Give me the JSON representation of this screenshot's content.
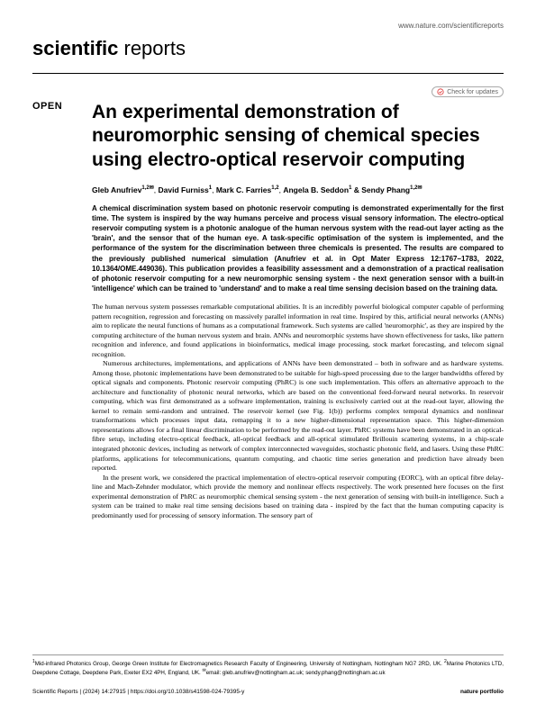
{
  "topbar_url": "www.nature.com/scientificreports",
  "journal": {
    "bold": "scientific",
    "light": " reports"
  },
  "updates_label": "Check for updates",
  "open_label": "OPEN",
  "title": "An experimental demonstration of neuromorphic sensing of chemical species using electro-optical reservoir computing",
  "authors_html": "Gleb Anufriev<sup>1,2✉</sup>, David Furniss<sup>1</sup>, Mark C. Farries<sup>1,2</sup>, Angela B. Seddon<sup>1</sup> & Sendy Phang<sup>1,2✉</sup>",
  "abstract": "A chemical discrimination system based on photonic reservoir computing is demonstrated experimentally for the first time. The system is inspired by the way humans perceive and process visual sensory information. The electro-optical reservoir computing system is a photonic analogue of the human nervous system with the read-out layer acting as the 'brain', and the sensor that of the human eye. A task-specific optimisation of the system is implemented, and the performance of the system for the discrimination between three chemicals is presented. The results are compared to the previously published numerical simulation (Anufriev et al. in Opt Mater Express 12:1767–1783, 2022, 10.1364/OME.449036). This publication provides a feasibility assessment and a demonstration of a practical realisation of photonic reservoir computing for a new neuromorphic sensing system - the next generation sensor with a built-in 'intelligence' which can be trained to 'understand' and to make a real time sensing decision based on the training data.",
  "para1": "The human nervous system possesses remarkable computational abilities. It is an incredibly powerful biological computer capable of performing pattern recognition, regression and forecasting on massively parallel information in real time. Inspired by this, artificial neural networks (ANNs) aim to replicate the neural functions of humans as a computational framework. Such systems are called 'neuromorphic', as they are inspired by the computing architecture of the human nervous system and brain. ANNs and neuromorphic systems have shown effectiveness for tasks, like pattern recognition and inference, and found applications in bioinformatics, medical image processing, stock market forecasting, and telecom signal recognition.",
  "para2": "Numerous architectures, implementations, and applications of ANNs have been demonstrated – both in software and as hardware systems. Among those, photonic implementations have been demonstrated to be suitable for high-speed processing due to the larger bandwidths offered by optical signals and components. Photonic reservoir computing (PhRC) is one such implementation. This offers an alternative approach to the architecture and functionality of photonic neural networks, which are based on the conventional feed-forward neural networks. In reservoir computing, which was first demonstrated as a software implementation, training is exclusively carried out at the read-out layer, allowing the kernel to remain semi-random and untrained. The reservoir kernel (see Fig. 1(b)) performs complex temporal dynamics and nonlinear transformations which processes input data, remapping it to a new higher-dimensional representation space. This higher-dimension representations allows for a final linear discrimination to be performed by the read-out layer. PhRC systems have been demonstrated in an optical-fibre setup, including electro-optical feedback, all-optical feedback and all-optical stimulated Brillouin scattering systems, in a chip-scale integrated photonic devices, including as network of complex interconnected waveguides, stochastic photonic field, and lasers. Using these PhRC platforms, applications for telecommunications, quantum computing, and chaotic time series generation and prediction have already been reported.",
  "para3": "In the present work, we considered the practical implementation of electro-optical reservoir computing (EORC), with an optical fibre delay-line and Mach-Zehnder modulator, which provide the memory and nonlinear effects respectively. The work presented here focuses on the first experimental demonstration of PhRC as neuromorphic chemical sensing system - the next generation of sensing with built-in intelligence. Such a system can be trained to make real time sensing decisions based on training data - inspired by the fact that the human computing capacity is predominantly used for processing of sensory information. The sensory part of",
  "affiliations": "<sup>1</sup>Mid-infrared Photonics Group, George Green Institute for Electromagnetics Research Faculty of Engineering, University of Nottingham, Nottingham NG7 2RD, UK. <sup>2</sup>Marine Photonics LTD, Deepdene Cottage, Deepdene Park, Exeter EX2 4PH, England, UK. <sup>✉</sup>email: gleb.anufriev@nottingham.ac.uk; sendy.phang@nottingham.ac.uk",
  "footer": {
    "left": "Scientific Reports |        (2024) 14:27915",
    "mid": "| https://doi.org/10.1038/s41598-024-79395-y",
    "page": "1",
    "publisher": "nature portfolio"
  },
  "colors": {
    "link": "#1a5490",
    "text": "#000000",
    "rule": "#000000"
  }
}
